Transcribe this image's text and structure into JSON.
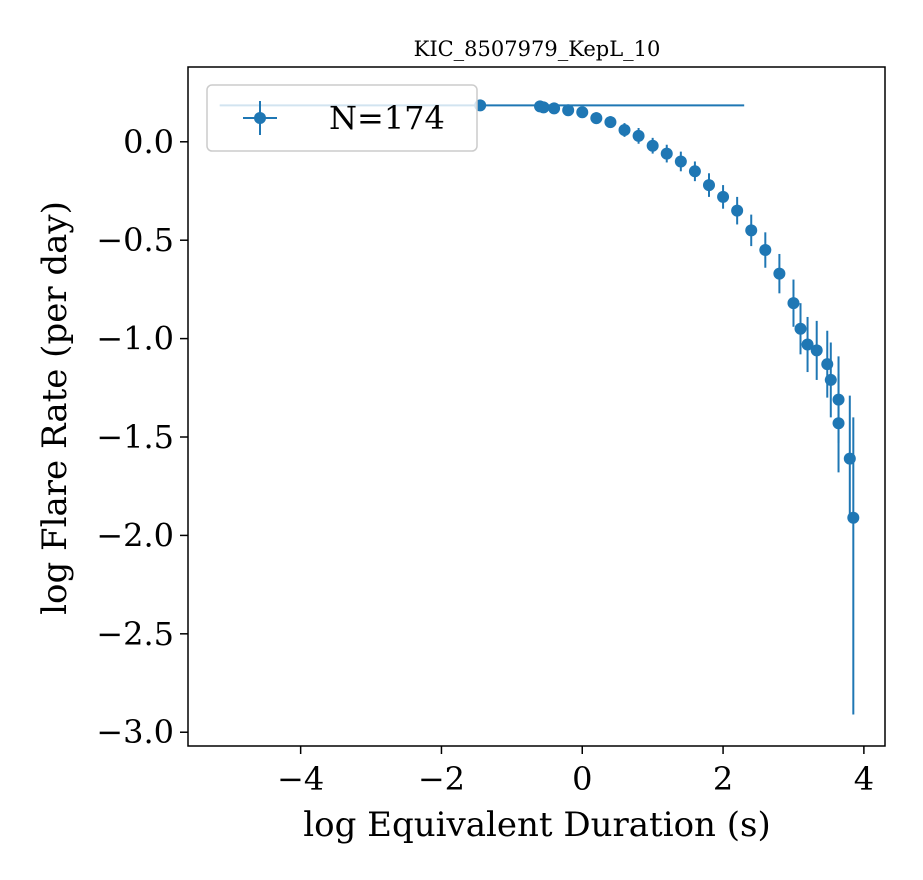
{
  "chart_data": {
    "type": "scatter",
    "title": "KIC_8507979_KepL_10",
    "xlabel": "log Equivalent Duration (s)",
    "ylabel": "log Flare Rate (per day)",
    "xlim": [
      -5.6,
      4.3
    ],
    "ylim": [
      -3.07,
      0.38
    ],
    "xticks": [
      -4,
      -2,
      0,
      2,
      4
    ],
    "xtick_labels": [
      "−4",
      "−2",
      "0",
      "2",
      "4"
    ],
    "yticks": [
      0.0,
      -0.5,
      -1.0,
      -1.5,
      -2.0,
      -2.5,
      -3.0
    ],
    "ytick_labels": [
      "0.0",
      "−0.5",
      "−1.0",
      "−1.5",
      "−2.0",
      "−2.5",
      "−3.0"
    ],
    "legend": {
      "label": "N=174",
      "placement": "upper-left"
    },
    "grid": false,
    "color": "#1f77b4",
    "series": [
      {
        "name": "N=174",
        "points": [
          {
            "x": -1.45,
            "y": 0.185,
            "xerr_low": 3.7,
            "xerr_high": 3.75,
            "yerr": 0.01
          },
          {
            "x": -0.6,
            "y": 0.18,
            "yerr": 0.012
          },
          {
            "x": -0.55,
            "y": 0.175,
            "yerr": 0.015
          },
          {
            "x": -0.4,
            "y": 0.17,
            "yerr": 0.02
          },
          {
            "x": -0.2,
            "y": 0.16,
            "yerr": 0.02
          },
          {
            "x": 0.0,
            "y": 0.15,
            "yerr": 0.025
          },
          {
            "x": 0.2,
            "y": 0.12,
            "yerr": 0.03
          },
          {
            "x": 0.4,
            "y": 0.1,
            "yerr": 0.03
          },
          {
            "x": 0.6,
            "y": 0.06,
            "yerr": 0.035
          },
          {
            "x": 0.8,
            "y": 0.03,
            "yerr": 0.04
          },
          {
            "x": 1.0,
            "y": -0.02,
            "yerr": 0.04
          },
          {
            "x": 1.2,
            "y": -0.06,
            "yerr": 0.045
          },
          {
            "x": 1.4,
            "y": -0.1,
            "yerr": 0.05
          },
          {
            "x": 1.6,
            "y": -0.15,
            "yerr": 0.05
          },
          {
            "x": 1.8,
            "y": -0.22,
            "yerr": 0.06
          },
          {
            "x": 2.0,
            "y": -0.28,
            "yerr": 0.06
          },
          {
            "x": 2.2,
            "y": -0.35,
            "yerr": 0.07
          },
          {
            "x": 2.4,
            "y": -0.45,
            "yerr": 0.08
          },
          {
            "x": 2.6,
            "y": -0.55,
            "yerr": 0.09
          },
          {
            "x": 2.8,
            "y": -0.67,
            "yerr": 0.1
          },
          {
            "x": 3.0,
            "y": -0.82,
            "yerr": 0.12
          },
          {
            "x": 3.1,
            "y": -0.95,
            "yerr": 0.13
          },
          {
            "x": 3.2,
            "y": -1.03,
            "yerr": 0.14
          },
          {
            "x": 3.33,
            "y": -1.06,
            "yerr": 0.15
          },
          {
            "x": 3.48,
            "y": -1.13,
            "yerr": 0.17
          },
          {
            "x": 3.53,
            "y": -1.21,
            "yerr": 0.19
          },
          {
            "x": 3.64,
            "y": -1.31,
            "yerr": 0.22
          },
          {
            "x": 3.64,
            "y": -1.43,
            "yerr": 0.25
          },
          {
            "x": 3.8,
            "y": -1.61,
            "yerr": 0.32
          },
          {
            "x": 3.85,
            "y": -1.91,
            "yerr_low": 1.0,
            "yerr_high": 0.51
          }
        ]
      }
    ]
  }
}
